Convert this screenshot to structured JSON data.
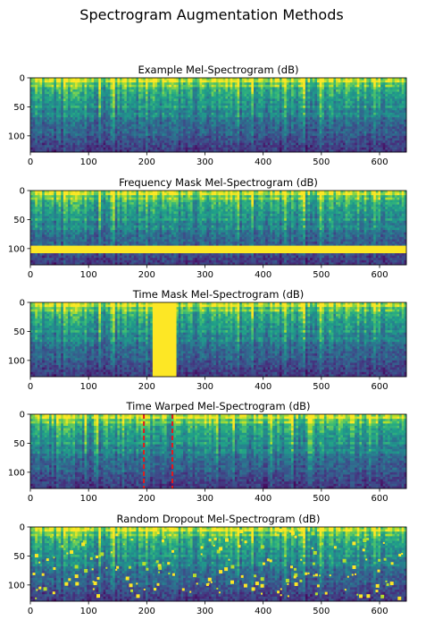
{
  "colors": {
    "viridis_dark": "#440154",
    "viridis_blue": "#31688e",
    "viridis_teal": "#1f9e89",
    "viridis_green": "#6ece58",
    "viridis_yellow": "#fde725",
    "warp_line": "#e41a1c"
  },
  "chart_data": {
    "type": "heatmap",
    "title": "Spectrogram Augmentation Methods",
    "xlim": [
      0,
      646
    ],
    "ylim": [
      128,
      0
    ],
    "xticks": [
      0,
      100,
      200,
      300,
      400,
      500,
      600
    ],
    "yticks": [
      0,
      50,
      100
    ],
    "panels": [
      {
        "title": "Example Mel-Spectrogram (dB)",
        "augmentation": "none"
      },
      {
        "title": "Frequency Mask Mel-Spectrogram (dB)",
        "augmentation": "frequency_mask",
        "mask_rows": [
          95,
          108
        ]
      },
      {
        "title": "Time Mask Mel-Spectrogram (dB)",
        "augmentation": "time_mask",
        "mask_cols": [
          210,
          251
        ]
      },
      {
        "title": "Time Warped Mel-Spectrogram (dB)",
        "augmentation": "time_warp",
        "warp_source": 244,
        "warp_target": 195
      },
      {
        "title": "Random Dropout Mel-Spectrogram (dB)",
        "augmentation": "random_dropout",
        "dropout_cells": 170
      }
    ]
  }
}
